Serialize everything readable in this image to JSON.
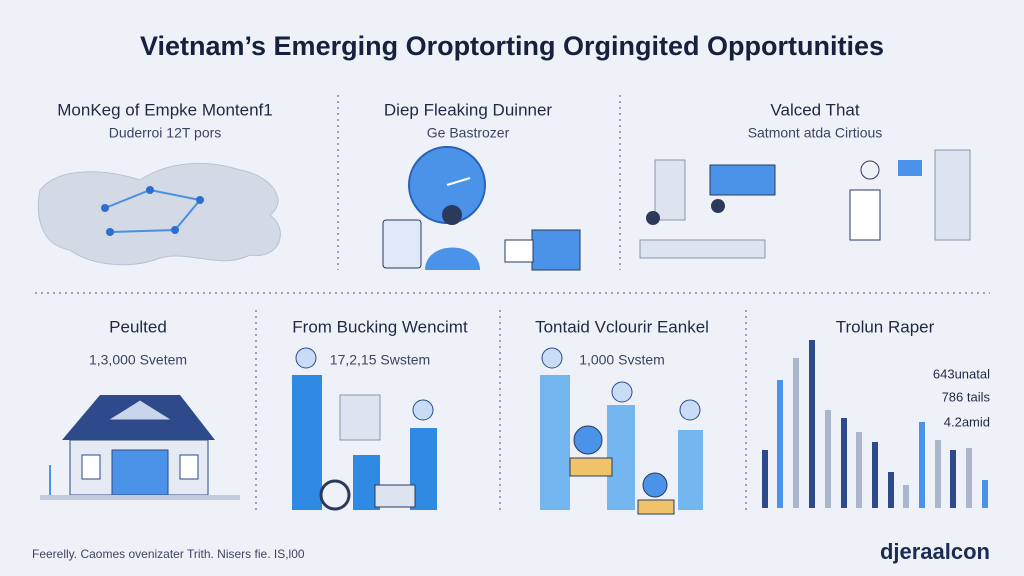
{
  "header": {
    "title": "Vietnam’s Emerging Oroptorting Orgingited Opportunities"
  },
  "top_panels": [
    {
      "heading": "MonKeg of Empke Montenf1",
      "subheading": "Duderroi 12T pors"
    },
    {
      "heading": "Diep Fleaking Duinner",
      "subheading": "Ge Bastrozer"
    },
    {
      "heading": "Valced That",
      "subheading": "Satmont atda Cirtious"
    }
  ],
  "bottom_panels": [
    {
      "heading": "Peulted",
      "subheading": "1,3,000 Svetem"
    },
    {
      "heading": "From Bucking Wencimt",
      "subheading": "17,2,15 Swstem"
    },
    {
      "heading": "Tontaid Vclourir Eankel",
      "subheading": "1,000 Svstem"
    },
    {
      "heading": "Trolun Raper",
      "labels": [
        "643unatal",
        "786 tails",
        "4.2amid"
      ]
    }
  ],
  "footer": {
    "note": "Feerelly. Caomes ovenizater Trith. Nisers fie. IS,l00",
    "logo": "djeraalcon"
  }
}
